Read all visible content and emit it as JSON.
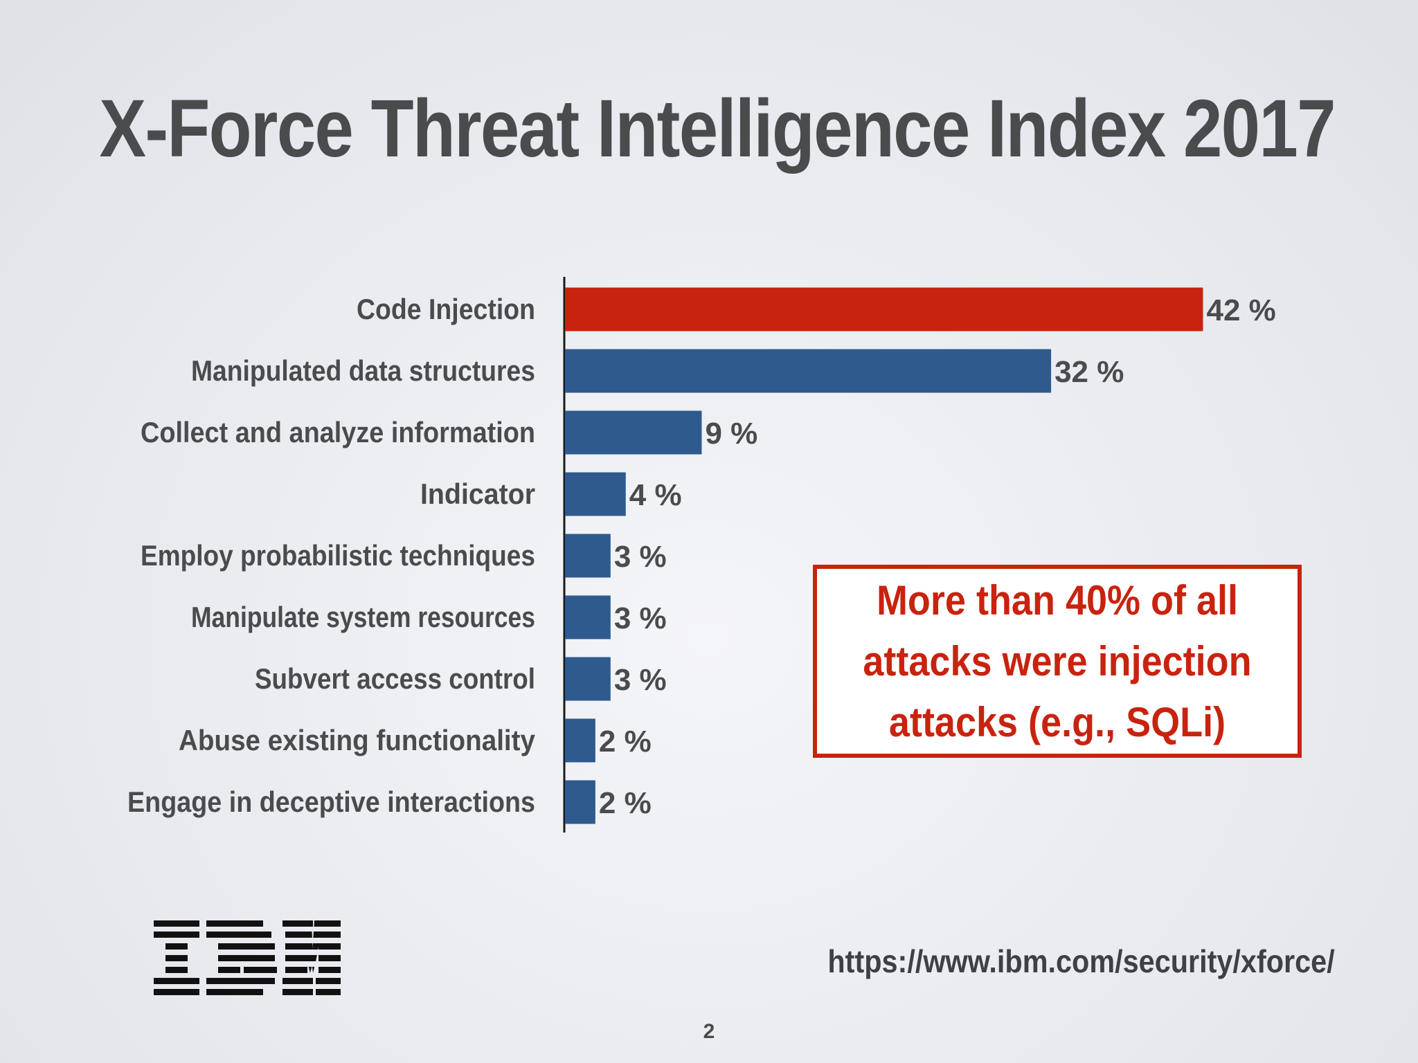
{
  "slide": {
    "title": "X-Force Threat Intelligence Index 2017",
    "callout": "More than 40% of all attacks were injection attacks (e.g., SQLi)",
    "logo": "IBM",
    "source_url": "https://www.ibm.com/security/xforce/",
    "page_number": "2"
  },
  "colors": {
    "highlight": "#c8230f",
    "bar": "#2e5a8e",
    "text": "#4a4b4d"
  },
  "chart_data": {
    "type": "bar",
    "orientation": "horizontal",
    "title": "X-Force Threat Intelligence Index 2017",
    "xlabel": "",
    "ylabel": "",
    "xlim": [
      0,
      50
    ],
    "grid": false,
    "value_suffix": " %",
    "categories": [
      "Code Injection",
      "Manipulated data structures",
      "Collect and analyze information",
      "Indicator",
      "Employ probabilistic techniques",
      "Manipulate system resources",
      "Subvert access control",
      "Abuse existing functionality",
      "Engage in deceptive interactions"
    ],
    "values": [
      42,
      32,
      9,
      4,
      3,
      3,
      3,
      2,
      2
    ],
    "highlight_index": 0
  }
}
